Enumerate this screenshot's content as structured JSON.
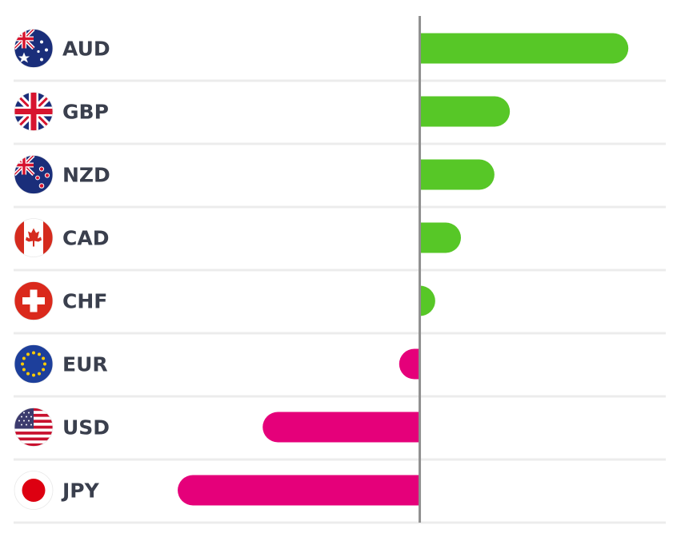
{
  "chart_data": {
    "type": "bar",
    "orientation": "horizontal",
    "title": "",
    "xlabel": "",
    "ylabel": "",
    "grid": false,
    "categories": [
      "AUD",
      "GBP",
      "NZD",
      "CAD",
      "CHF",
      "EUR",
      "USD",
      "JPY"
    ],
    "values": [
      8.1,
      3.5,
      2.9,
      1.6,
      0.6,
      -0.8,
      -6.1,
      -9.4
    ],
    "xlim": [
      -16.3,
      10.3
    ],
    "colors": {
      "positive": "#57c727",
      "negative": "#e5007a",
      "zero_line": "#8f8f8f",
      "row_separator": "#ececec",
      "label_text": "#3a3f4d"
    },
    "icons": [
      "australia-flag-icon",
      "united-kingdom-flag-icon",
      "new-zealand-flag-icon",
      "canada-flag-icon",
      "switzerland-flag-icon",
      "european-union-flag-icon",
      "united-states-flag-icon",
      "japan-flag-icon"
    ]
  }
}
